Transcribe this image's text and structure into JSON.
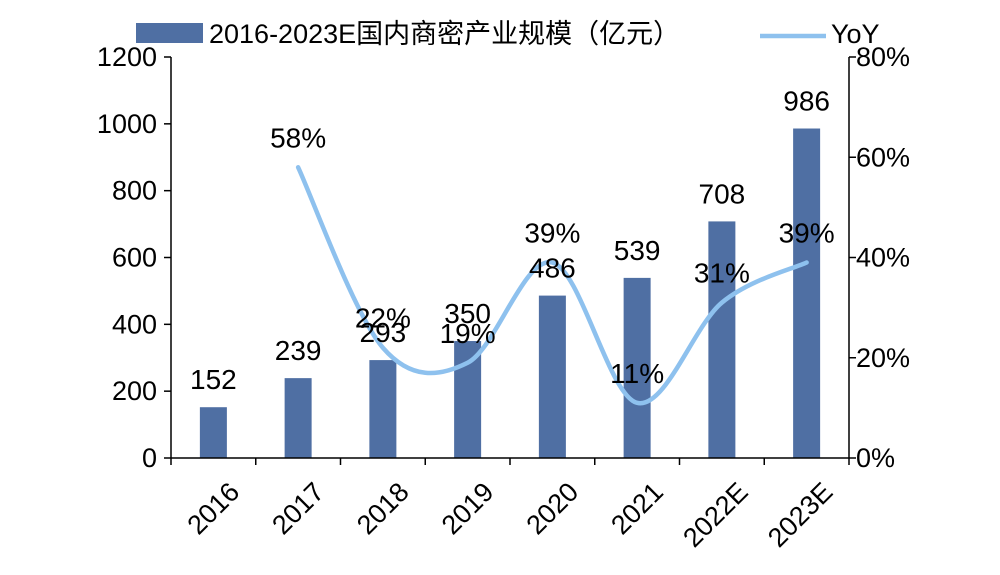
{
  "chart_data": {
    "type": "bar+line",
    "categories": [
      "2016",
      "2017",
      "2018",
      "2019",
      "2020",
      "2021",
      "2022E",
      "2023E"
    ],
    "series": [
      {
        "name": "2016-2023E国内商密产业规模（亿元）",
        "type": "bar",
        "axis": "left",
        "values": [
          152,
          239,
          293,
          350,
          486,
          539,
          708,
          986
        ],
        "labels": [
          "152",
          "239",
          "293",
          "350",
          "486",
          "539",
          "708",
          "986"
        ],
        "color": "#4f6fa3"
      },
      {
        "name": "YoY",
        "type": "line",
        "axis": "right",
        "values": [
          null,
          58,
          22,
          19,
          39,
          11,
          31,
          39
        ],
        "labels": [
          null,
          "58%",
          "22%",
          "19%",
          "39%",
          "11%",
          "31%",
          "39%"
        ],
        "color": "#8ec1ee"
      }
    ],
    "y_left": {
      "min": 0,
      "max": 1200,
      "ticks": [
        "0",
        "200",
        "400",
        "600",
        "800",
        "1000",
        "1200"
      ]
    },
    "y_right": {
      "min": 0,
      "max": 80,
      "ticks": [
        "0%",
        "20%",
        "40%",
        "60%",
        "80%"
      ]
    },
    "legend_position": "top",
    "grid": false
  }
}
